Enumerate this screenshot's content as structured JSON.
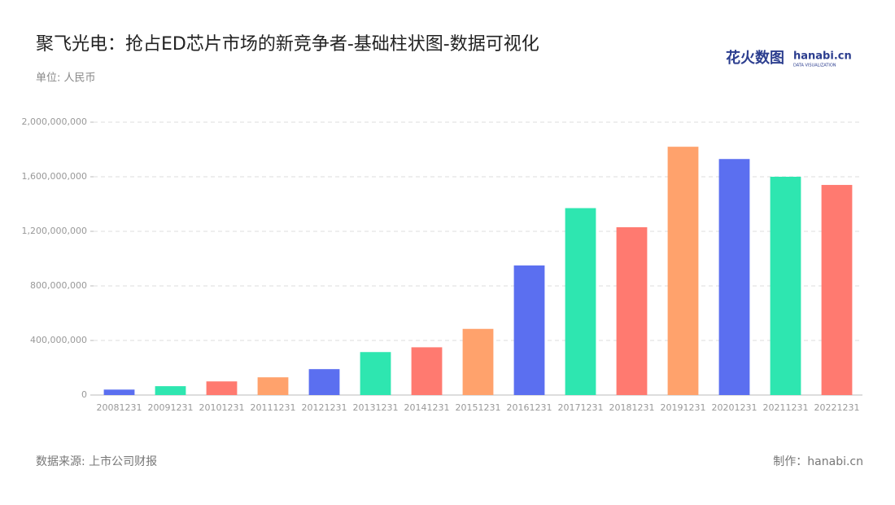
{
  "chart_data": {
    "type": "bar",
    "title": "聚飞光电：抢占ED芯片市场的新竞争者-基础柱状图-数据可视化",
    "subtitle": "单位: 人民币",
    "source": "数据来源: 上市公司财报",
    "credit": "制作：hanabi.cn",
    "logo": {
      "text": "花火数图",
      "brand": "hanabi.cn",
      "tagline": "DATA VISUALIZATION"
    },
    "categories": [
      "20081231",
      "20091231",
      "20101231",
      "20111231",
      "20121231",
      "20131231",
      "20141231",
      "20151231",
      "20161231",
      "20171231",
      "20181231",
      "20191231",
      "20201231",
      "20211231",
      "20221231"
    ],
    "values": [
      40000000,
      65000000,
      100000000,
      130000000,
      190000000,
      315000000,
      350000000,
      485000000,
      950000000,
      1370000000,
      1230000000,
      1820000000,
      1730000000,
      1600000000,
      1540000000
    ],
    "colors": [
      "#5b6ff0",
      "#2ee6b0",
      "#ff7a70",
      "#ffa26c",
      "#5b6ff0",
      "#2ee6b0",
      "#ff7a70",
      "#ffa26c",
      "#5b6ff0",
      "#2ee6b0",
      "#ff7a70",
      "#ffa26c",
      "#5b6ff0",
      "#2ee6b0",
      "#ff7a70"
    ],
    "ylim": [
      0,
      2000000000
    ],
    "yticks": [
      0,
      {
        "value": 400000000,
        "label": "400,000,000"
      },
      {
        "value": 800000000,
        "label": "800,000,000"
      },
      {
        "value": 1200000000,
        "label": "1,200,000,000"
      },
      {
        "value": 1600000000,
        "label": "1,600,000,000"
      },
      {
        "value": 2000000000,
        "label": "2,000,000,000"
      }
    ],
    "grid": true
  }
}
